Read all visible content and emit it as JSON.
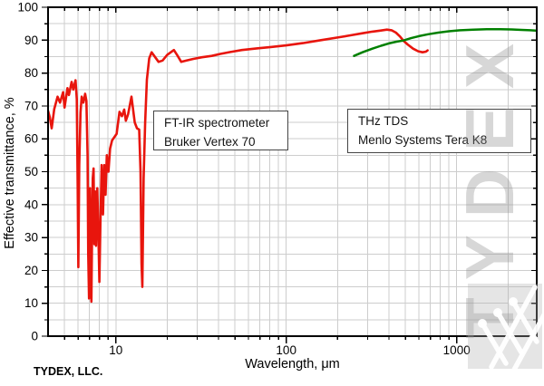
{
  "watermark": {
    "text": "TYDEX",
    "logo_icon": "tydex-w-logo"
  },
  "footer": {
    "company": "TYDEX, LLC."
  },
  "annotations": [
    {
      "id": "ftir",
      "lines": [
        "FT-IR spectrometer",
        "Bruker Vertex 70"
      ]
    },
    {
      "id": "thz",
      "lines": [
        "THz TDS",
        "Menlo Systems Tera K8"
      ]
    }
  ],
  "chart_data": {
    "type": "line",
    "title": "",
    "xlabel": "Wavelength, μm",
    "ylabel": "Effective transmittance, %",
    "x_scale": "log",
    "xlim": [
      4,
      2950
    ],
    "ylim": [
      0,
      100
    ],
    "x_labeled_ticks": [
      10,
      100,
      1000
    ],
    "y_tick_step": 10,
    "y_minor_step": 5,
    "grid": "major+minor",
    "grid_color": "#cdcdcd",
    "frame_color": "#000000",
    "legend_position": "none (labels shown as text boxes on plot)",
    "series": [
      {
        "name": "FT-IR spectrometer Bruker Vertex 70",
        "color": "#e8150d",
        "width": 2.6,
        "points": [
          [
            4.0,
            68.5
          ],
          [
            4.1,
            66.5
          ],
          [
            4.2,
            63.2
          ],
          [
            4.35,
            69
          ],
          [
            4.55,
            72.8
          ],
          [
            4.7,
            71
          ],
          [
            4.9,
            74.2
          ],
          [
            5.0,
            69.5
          ],
          [
            5.2,
            75.4
          ],
          [
            5.3,
            73.3
          ],
          [
            5.5,
            77.3
          ],
          [
            5.62,
            75
          ],
          [
            5.8,
            77.8
          ],
          [
            5.9,
            72
          ],
          [
            5.97,
            45
          ],
          [
            6.02,
            21
          ],
          [
            6.1,
            52
          ],
          [
            6.2,
            68
          ],
          [
            6.3,
            72.8
          ],
          [
            6.45,
            71
          ],
          [
            6.6,
            73.7
          ],
          [
            6.72,
            71.5
          ],
          [
            6.82,
            55
          ],
          [
            6.88,
            25
          ],
          [
            6.96,
            11.5
          ],
          [
            7.05,
            45
          ],
          [
            7.12,
            22
          ],
          [
            7.18,
            10.5
          ],
          [
            7.25,
            30
          ],
          [
            7.32,
            48
          ],
          [
            7.4,
            51
          ],
          [
            7.48,
            28
          ],
          [
            7.56,
            44
          ],
          [
            7.65,
            27.5
          ],
          [
            7.78,
            45
          ],
          [
            7.9,
            30
          ],
          [
            8.0,
            16.5
          ],
          [
            8.12,
            35
          ],
          [
            8.25,
            52
          ],
          [
            8.4,
            37
          ],
          [
            8.55,
            52
          ],
          [
            8.7,
            43
          ],
          [
            8.85,
            55
          ],
          [
            9.05,
            50
          ],
          [
            9.25,
            57
          ],
          [
            9.5,
            59.5
          ],
          [
            9.8,
            60.5
          ],
          [
            10.1,
            61.5
          ],
          [
            10.5,
            68.2
          ],
          [
            10.85,
            66.9
          ],
          [
            11.2,
            68.9
          ],
          [
            11.45,
            65.5
          ],
          [
            11.8,
            67.5
          ],
          [
            12.35,
            72.8
          ],
          [
            12.9,
            65
          ],
          [
            13.3,
            63.2
          ],
          [
            13.7,
            62.8
          ],
          [
            13.95,
            50
          ],
          [
            14.15,
            22
          ],
          [
            14.3,
            15
          ],
          [
            14.55,
            48
          ],
          [
            14.85,
            65
          ],
          [
            15.2,
            78
          ],
          [
            15.7,
            84.5
          ],
          [
            16.2,
            86.3
          ],
          [
            16.8,
            85.2
          ],
          [
            17.8,
            83.4
          ],
          [
            18.8,
            83.8
          ],
          [
            20,
            85.5
          ],
          [
            21.9,
            87
          ],
          [
            23,
            85.3
          ],
          [
            24.2,
            83.4
          ],
          [
            26,
            83.8
          ],
          [
            28.5,
            84.3
          ],
          [
            32,
            84.8
          ],
          [
            36.5,
            85.2
          ],
          [
            41,
            85.8
          ],
          [
            47,
            86.4
          ],
          [
            55,
            87
          ],
          [
            67,
            87.5
          ],
          [
            81,
            87.9
          ],
          [
            100,
            88.4
          ],
          [
            125,
            89.1
          ],
          [
            160,
            90
          ],
          [
            200,
            90.8
          ],
          [
            240,
            91.5
          ],
          [
            280,
            92.1
          ],
          [
            320,
            92.6
          ],
          [
            355,
            92.9
          ],
          [
            390,
            93.2
          ],
          [
            415,
            93.0
          ],
          [
            440,
            92.3
          ],
          [
            465,
            91.1
          ],
          [
            487,
            89.8
          ],
          [
            515,
            88.7
          ],
          [
            555,
            87.4
          ],
          [
            595,
            86.6
          ],
          [
            630,
            86.3
          ],
          [
            660,
            86.5
          ],
          [
            675,
            86.9
          ]
        ]
      },
      {
        "name": "THz TDS Menlo Systems Tera K8",
        "color": "#008000",
        "width": 2.5,
        "points": [
          [
            250,
            85.2
          ],
          [
            280,
            86.3
          ],
          [
            320,
            87.4
          ],
          [
            360,
            88.3
          ],
          [
            400,
            89.0
          ],
          [
            440,
            89.5
          ],
          [
            487,
            89.9
          ],
          [
            540,
            90.6
          ],
          [
            600,
            91.2
          ],
          [
            680,
            91.8
          ],
          [
            780,
            92.3
          ],
          [
            900,
            92.7
          ],
          [
            1050,
            93.0
          ],
          [
            1250,
            93.2
          ],
          [
            1500,
            93.3
          ],
          [
            1800,
            93.3
          ],
          [
            2100,
            93.25
          ],
          [
            2400,
            93.1
          ],
          [
            2700,
            93.0
          ],
          [
            2900,
            92.9
          ]
        ]
      }
    ]
  }
}
